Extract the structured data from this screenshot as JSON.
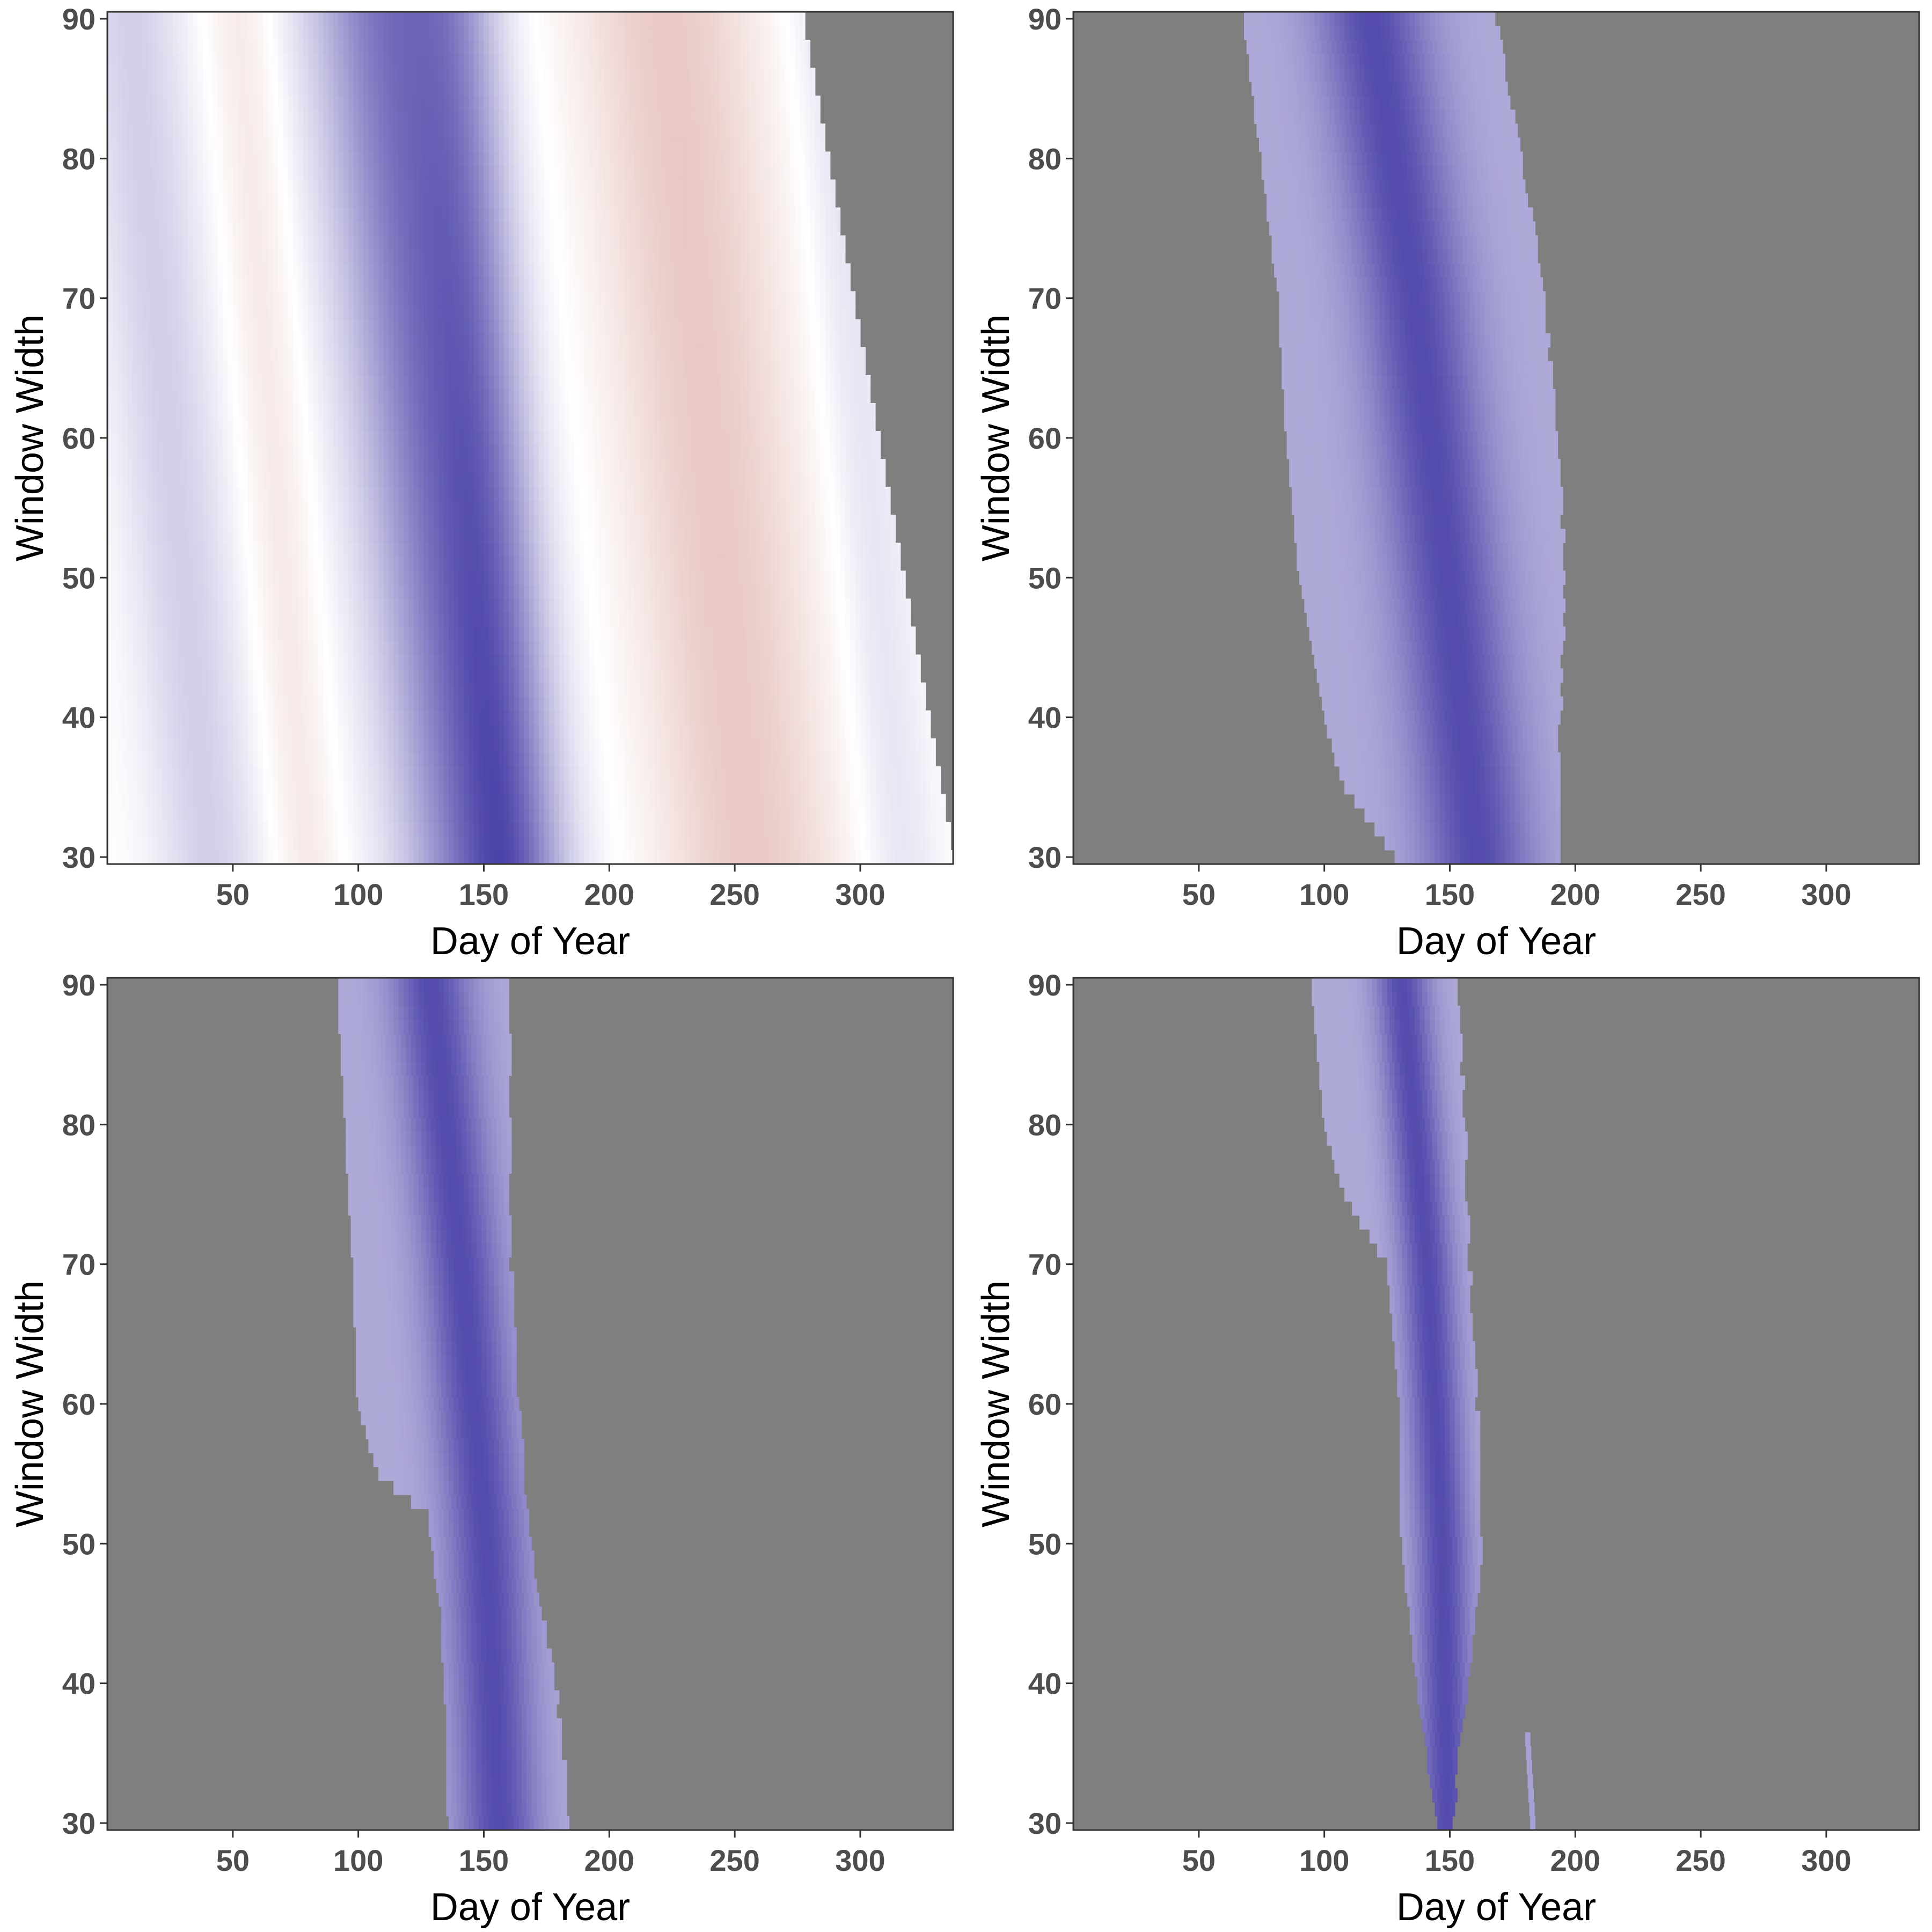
{
  "chart_data": [
    {
      "panel": "top-left",
      "type": "heatmap",
      "xlabel": "Day of Year",
      "ylabel": "Window Width",
      "xlim": [
        0,
        337
      ],
      "ylim": [
        29.5,
        90.5
      ],
      "x_ticks": [
        50,
        100,
        150,
        200,
        250,
        300
      ],
      "y_ticks": [
        30,
        40,
        50,
        60,
        70,
        80,
        90
      ],
      "missing_region": "right-edge: start day > 276 at width 90 sloping to > 337 at width 30",
      "bands": [
        {
          "center_at_w90": 8,
          "center_at_w30": 40,
          "half_width": 22,
          "value": 0.25
        },
        {
          "center_at_w90": 52,
          "center_at_w30": 78,
          "half_width": 14,
          "value": -0.15
        },
        {
          "center_at_w90": 112,
          "center_at_w30": 148,
          "half_width": 32,
          "value": 0.75
        },
        {
          "center_at_w90": 138,
          "center_at_w30": 160,
          "half_width": 18,
          "value": 0.3
        },
        {
          "center_at_w90": 222,
          "center_at_w30": 255,
          "half_width": 36,
          "value": -0.35
        },
        {
          "center_at_w90": 285,
          "center_at_w30": 315,
          "half_width": 16,
          "value": 0.15
        }
      ]
    },
    {
      "panel": "top-right",
      "type": "heatmap",
      "xlabel": "Day of Year",
      "ylabel": "Window Width",
      "xlim": [
        0,
        337
      ],
      "ylim": [
        29.5,
        90.5
      ],
      "x_ticks": [
        50,
        100,
        150,
        200,
        250,
        300
      ],
      "y_ticks": [
        30,
        40,
        50,
        60,
        70,
        80,
        90
      ],
      "region_left": [
        [
          90,
          68
        ],
        [
          80,
          75
        ],
        [
          70,
          82
        ],
        [
          60,
          85
        ],
        [
          50,
          90
        ],
        [
          40,
          100
        ],
        [
          35,
          108
        ],
        [
          30,
          128
        ]
      ],
      "region_right": [
        [
          90,
          167
        ],
        [
          80,
          178
        ],
        [
          70,
          187
        ],
        [
          60,
          192
        ],
        [
          50,
          195
        ],
        [
          40,
          193
        ],
        [
          30,
          193
        ]
      ],
      "core_center": [
        [
          90,
          118
        ],
        [
          70,
          135
        ],
        [
          50,
          148
        ],
        [
          30,
          160
        ]
      ],
      "core_half_width": 22
    },
    {
      "panel": "bottom-left",
      "type": "heatmap",
      "xlabel": "Day of Year",
      "ylabel": "Window Width",
      "xlim": [
        0,
        337
      ],
      "ylim": [
        29.5,
        90.5
      ],
      "x_ticks": [
        50,
        100,
        150,
        200,
        250,
        300
      ],
      "y_ticks": [
        30,
        40,
        50,
        60,
        70,
        80,
        90
      ],
      "region_left": [
        [
          90,
          92
        ],
        [
          80,
          95
        ],
        [
          70,
          98
        ],
        [
          60,
          100
        ],
        [
          55,
          108
        ],
        [
          52,
          128
        ],
        [
          45,
          133
        ],
        [
          38,
          135
        ],
        [
          30,
          136
        ]
      ],
      "region_right": [
        [
          90,
          160
        ],
        [
          80,
          160
        ],
        [
          70,
          160
        ],
        [
          60,
          163
        ],
        [
          50,
          168
        ],
        [
          42,
          176
        ],
        [
          35,
          181
        ],
        [
          30,
          183
        ]
      ],
      "core_center": [
        [
          90,
          128
        ],
        [
          70,
          140
        ],
        [
          50,
          150
        ],
        [
          30,
          155
        ]
      ],
      "core_half_width": 16
    },
    {
      "panel": "bottom-right",
      "type": "heatmap",
      "xlabel": "Day of Year",
      "ylabel": "Window Width",
      "xlim": [
        0,
        337
      ],
      "ylim": [
        29.5,
        90.5
      ],
      "x_ticks": [
        50,
        100,
        150,
        200,
        250,
        300
      ],
      "y_ticks": [
        30,
        40,
        50,
        60,
        70,
        80,
        90
      ],
      "region_left": [
        [
          90,
          95
        ],
        [
          80,
          100
        ],
        [
          75,
          108
        ],
        [
          70,
          125
        ],
        [
          60,
          130
        ],
        [
          50,
          131
        ],
        [
          40,
          137
        ],
        [
          30,
          145
        ]
      ],
      "region_right": [
        [
          90,
          152
        ],
        [
          80,
          155
        ],
        [
          70,
          157
        ],
        [
          60,
          160
        ],
        [
          50,
          162
        ],
        [
          40,
          157
        ],
        [
          35,
          153
        ],
        [
          30,
          150
        ]
      ],
      "core_center": [
        [
          90,
          130
        ],
        [
          70,
          140
        ],
        [
          50,
          146
        ],
        [
          30,
          148
        ]
      ],
      "core_half_width": 11,
      "isolated_strip": [
        [
          36,
          180
        ],
        [
          30,
          182
        ]
      ]
    }
  ],
  "colors": {
    "missing": "#7f7f7f",
    "negative_max": "#c0655a",
    "neutral": "#ffffff",
    "positive_max": "#4b42a8",
    "panel_border": "#333333",
    "tick_text": "#4d4d4d",
    "title_text": "#000000"
  }
}
